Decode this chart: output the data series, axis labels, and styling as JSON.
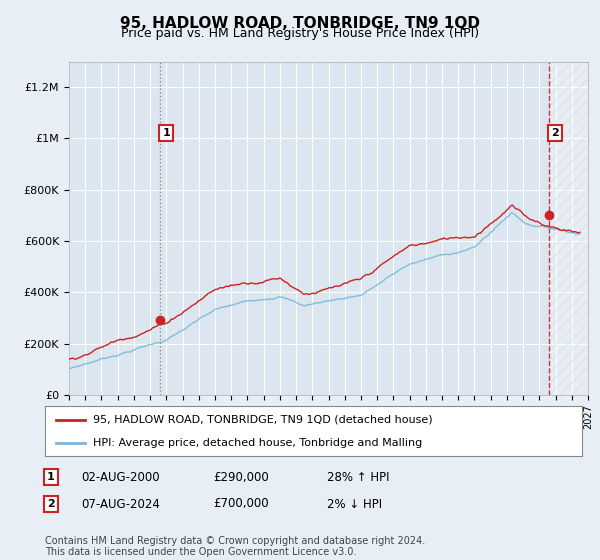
{
  "title": "95, HADLOW ROAD, TONBRIDGE, TN9 1QD",
  "subtitle": "Price paid vs. HM Land Registry's House Price Index (HPI)",
  "hpi_color": "#7ab8d9",
  "price_color": "#cc2222",
  "background_color": "#e8eef5",
  "plot_bg_color": "#dce6f0",
  "ylim": [
    0,
    1300000
  ],
  "yticks": [
    0,
    200000,
    400000,
    600000,
    800000,
    1000000,
    1200000
  ],
  "ytick_labels": [
    "£0",
    "£200K",
    "£400K",
    "£600K",
    "£800K",
    "£1M",
    "£1.2M"
  ],
  "legend_line1": "95, HADLOW ROAD, TONBRIDGE, TN9 1QD (detached house)",
  "legend_line2": "HPI: Average price, detached house, Tonbridge and Malling",
  "annotation1_date": "02-AUG-2000",
  "annotation1_price": "£290,000",
  "annotation1_hpi": "28% ↑ HPI",
  "annotation2_date": "07-AUG-2024",
  "annotation2_price": "£700,000",
  "annotation2_hpi": "2% ↓ HPI",
  "footnote": "Contains HM Land Registry data © Crown copyright and database right 2024.\nThis data is licensed under the Open Government Licence v3.0.",
  "sale1_year": 2000.6,
  "sale1_price": 290000,
  "sale2_year": 2024.6,
  "sale2_price": 700000,
  "xmin": 1995,
  "xmax": 2027
}
